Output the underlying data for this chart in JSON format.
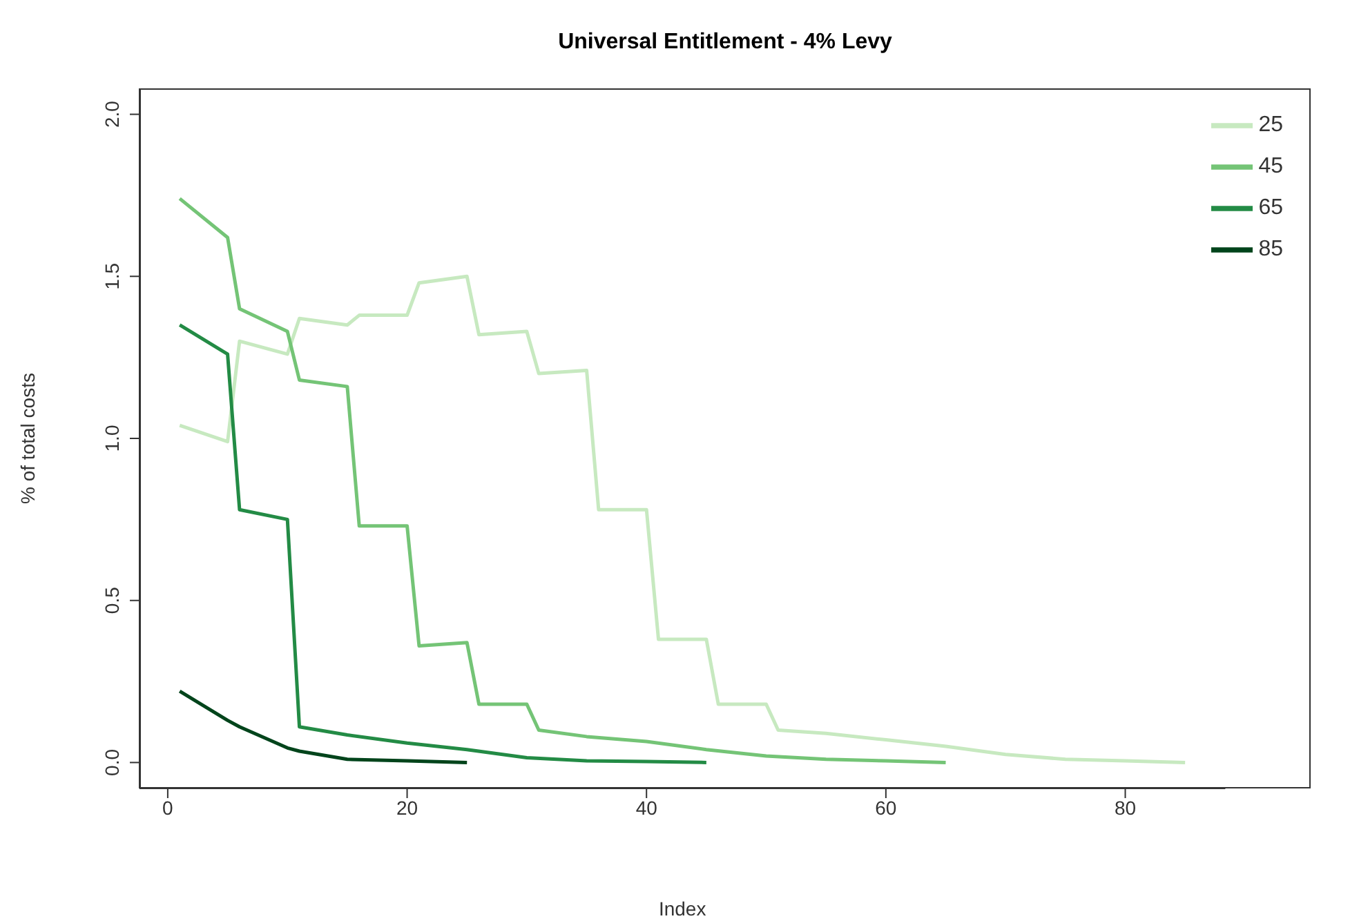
{
  "chart_data": {
    "type": "line",
    "title": "Universal Entitlement - 4% Levy",
    "xlabel": "Index",
    "ylabel": "% of total costs",
    "series": [
      {
        "name": "25",
        "color": "#c7e9c0",
        "x": [
          1,
          5,
          6,
          10,
          11,
          15,
          16,
          20,
          21,
          25,
          26,
          30,
          31,
          35,
          36,
          40,
          41,
          45,
          46,
          50,
          51,
          55,
          60,
          65,
          70,
          75,
          80,
          85
        ],
        "values": [
          1.04,
          0.99,
          1.3,
          1.26,
          1.37,
          1.35,
          1.38,
          1.38,
          1.48,
          1.5,
          1.32,
          1.33,
          1.2,
          1.21,
          0.78,
          0.78,
          0.38,
          0.38,
          0.18,
          0.18,
          0.1,
          0.09,
          0.07,
          0.05,
          0.025,
          0.01,
          0.005,
          0
        ]
      },
      {
        "name": "45",
        "color": "#74c476",
        "x": [
          1,
          5,
          6,
          10,
          11,
          15,
          16,
          20,
          21,
          25,
          26,
          30,
          31,
          35,
          40,
          45,
          50,
          55,
          60,
          65
        ],
        "values": [
          1.74,
          1.62,
          1.4,
          1.33,
          1.18,
          1.16,
          0.73,
          0.73,
          0.36,
          0.37,
          0.18,
          0.18,
          0.1,
          0.08,
          0.065,
          0.04,
          0.02,
          0.01,
          0.005,
          0
        ]
      },
      {
        "name": "65",
        "color": "#238b45",
        "x": [
          1,
          5,
          6,
          10,
          11,
          15,
          20,
          25,
          30,
          35,
          40,
          45
        ],
        "values": [
          1.35,
          1.26,
          0.78,
          0.75,
          0.11,
          0.085,
          0.06,
          0.04,
          0.015,
          0.005,
          0.003,
          0
        ]
      },
      {
        "name": "85",
        "color": "#00441b",
        "x": [
          1,
          5,
          6,
          10,
          11,
          15,
          20,
          25
        ],
        "values": [
          0.22,
          0.13,
          0.11,
          0.045,
          0.035,
          0.01,
          0.005,
          0
        ]
      }
    ],
    "xlim": [
      -2.36,
      88.36
    ],
    "xticks": [
      0,
      20,
      40,
      60,
      80
    ],
    "ylim": [
      -0.08,
      2.08
    ],
    "yticks": [
      {
        "value": 0,
        "label": "0.0"
      },
      {
        "value": 0.5,
        "label": "0.5"
      },
      {
        "value": 1,
        "label": "1.0"
      },
      {
        "value": 1.5,
        "label": "1.5"
      },
      {
        "value": 2,
        "label": "2.0"
      }
    ],
    "legend": "top right",
    "line_style": "solid"
  }
}
